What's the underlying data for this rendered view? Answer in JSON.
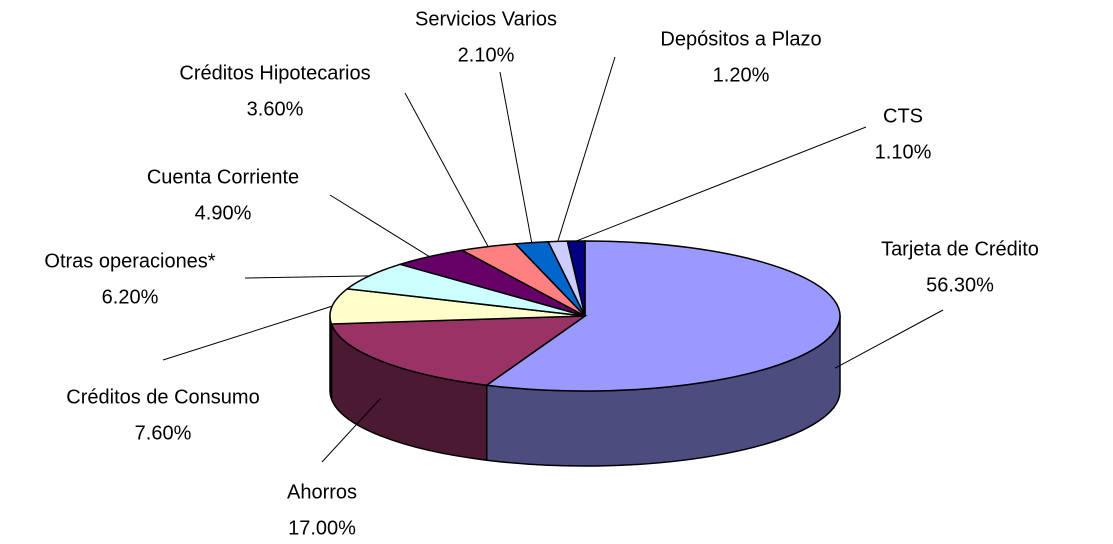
{
  "chart_data": {
    "type": "pie3d",
    "categories": [
      "Tarjeta de Crédito",
      "Ahorros",
      "Créditos de Consumo",
      "Otras operaciones*",
      "Cuenta Corriente",
      "Créditos Hipotecarios",
      "Servicios Varios",
      "Depósitos a Plazo",
      "CTS"
    ],
    "values": [
      56.3,
      17.0,
      7.6,
      6.2,
      4.9,
      3.6,
      2.1,
      1.2,
      1.1
    ],
    "value_labels": [
      "56.30%",
      "17.00%",
      "7.60%",
      "6.20%",
      "4.90%",
      "3.60%",
      "2.10%",
      "1.20%",
      "1.10%"
    ],
    "colors": [
      "#9999ff",
      "#993366",
      "#ffffcc",
      "#ccffff",
      "#660066",
      "#ff8080",
      "#0066cc",
      "#ccccff",
      "#000080"
    ]
  }
}
